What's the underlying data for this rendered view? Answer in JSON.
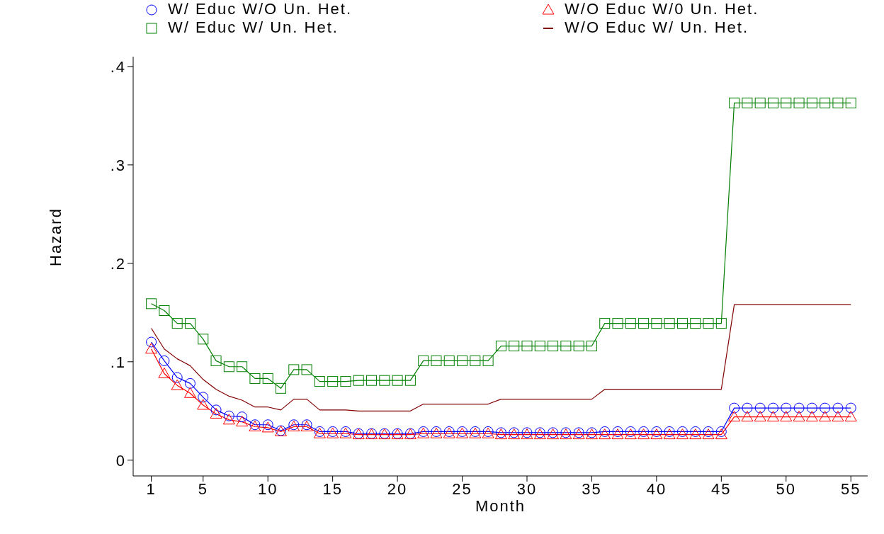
{
  "chart_data": {
    "type": "line",
    "xlabel": "Month",
    "ylabel": "Hazard",
    "x": [
      1,
      2,
      3,
      4,
      5,
      6,
      7,
      8,
      9,
      10,
      11,
      12,
      13,
      14,
      15,
      16,
      17,
      18,
      19,
      20,
      21,
      22,
      23,
      24,
      25,
      26,
      27,
      28,
      29,
      30,
      31,
      32,
      33,
      34,
      35,
      36,
      37,
      38,
      39,
      40,
      41,
      42,
      43,
      44,
      45,
      46,
      47,
      48,
      49,
      50,
      51,
      52,
      53,
      54,
      55
    ],
    "series": [
      {
        "name": "W/ Educ W/O Un. Het.",
        "color": "#0000ff",
        "marker": "circle",
        "values": [
          0.12,
          0.101,
          0.084,
          0.078,
          0.064,
          0.051,
          0.045,
          0.044,
          0.036,
          0.036,
          0.03,
          0.036,
          0.036,
          0.029,
          0.029,
          0.029,
          0.027,
          0.027,
          0.027,
          0.027,
          0.027,
          0.029,
          0.029,
          0.029,
          0.029,
          0.029,
          0.029,
          0.028,
          0.028,
          0.028,
          0.028,
          0.028,
          0.028,
          0.028,
          0.028,
          0.029,
          0.029,
          0.029,
          0.029,
          0.029,
          0.029,
          0.029,
          0.029,
          0.029,
          0.029,
          0.053,
          0.053,
          0.053,
          0.053,
          0.053,
          0.053,
          0.053,
          0.053,
          0.053,
          0.053
        ]
      },
      {
        "name": "W/O Educ W/0 Un. Het.",
        "color": "#ff0000",
        "marker": "triangle",
        "values": [
          0.113,
          0.088,
          0.076,
          0.068,
          0.056,
          0.047,
          0.041,
          0.039,
          0.034,
          0.033,
          0.029,
          0.034,
          0.034,
          0.027,
          0.027,
          0.027,
          0.026,
          0.026,
          0.026,
          0.026,
          0.026,
          0.027,
          0.027,
          0.027,
          0.027,
          0.027,
          0.027,
          0.026,
          0.026,
          0.026,
          0.026,
          0.026,
          0.026,
          0.026,
          0.026,
          0.026,
          0.026,
          0.026,
          0.026,
          0.026,
          0.026,
          0.026,
          0.026,
          0.026,
          0.026,
          0.044,
          0.044,
          0.044,
          0.044,
          0.044,
          0.044,
          0.044,
          0.044,
          0.044,
          0.044
        ]
      },
      {
        "name": "W/ Educ W/ Un. Het.",
        "color": "#008000",
        "marker": "square",
        "values": [
          0.159,
          0.152,
          0.139,
          0.139,
          0.123,
          0.101,
          0.095,
          0.095,
          0.083,
          0.083,
          0.073,
          0.092,
          0.092,
          0.08,
          0.08,
          0.08,
          0.081,
          0.081,
          0.081,
          0.081,
          0.081,
          0.101,
          0.101,
          0.101,
          0.101,
          0.101,
          0.101,
          0.116,
          0.116,
          0.116,
          0.116,
          0.116,
          0.116,
          0.116,
          0.116,
          0.139,
          0.139,
          0.139,
          0.139,
          0.139,
          0.139,
          0.139,
          0.139,
          0.139,
          0.139,
          0.363,
          0.363,
          0.363,
          0.363,
          0.363,
          0.363,
          0.363,
          0.363,
          0.363,
          0.363
        ]
      },
      {
        "name": "W/O Educ W/ Un. Het.",
        "color": "#800000",
        "marker": "none",
        "values": [
          0.134,
          0.113,
          0.103,
          0.096,
          0.082,
          0.072,
          0.065,
          0.061,
          0.054,
          0.054,
          0.051,
          0.062,
          0.062,
          0.051,
          0.051,
          0.051,
          0.05,
          0.05,
          0.05,
          0.05,
          0.05,
          0.057,
          0.057,
          0.057,
          0.057,
          0.057,
          0.057,
          0.062,
          0.062,
          0.062,
          0.062,
          0.062,
          0.062,
          0.062,
          0.062,
          0.072,
          0.072,
          0.072,
          0.072,
          0.072,
          0.072,
          0.072,
          0.072,
          0.072,
          0.072,
          0.158,
          0.158,
          0.158,
          0.158,
          0.158,
          0.158,
          0.158,
          0.158,
          0.158,
          0.158
        ]
      }
    ],
    "xlim": [
      -0.4,
      56.3
    ],
    "xticks": [
      1,
      5,
      10,
      15,
      20,
      25,
      30,
      35,
      40,
      45,
      50,
      55
    ],
    "ylim": [
      -0.016,
      0.41
    ],
    "yticks": [
      0,
      {
        "value": 0.1,
        "label": ".1"
      },
      {
        "value": 0.2,
        "label": ".2"
      },
      {
        "value": 0.3,
        "label": ".3"
      },
      {
        "value": 0.4,
        "label": ".4"
      }
    ],
    "grid": false,
    "legend": "top",
    "line_style": "solid"
  }
}
